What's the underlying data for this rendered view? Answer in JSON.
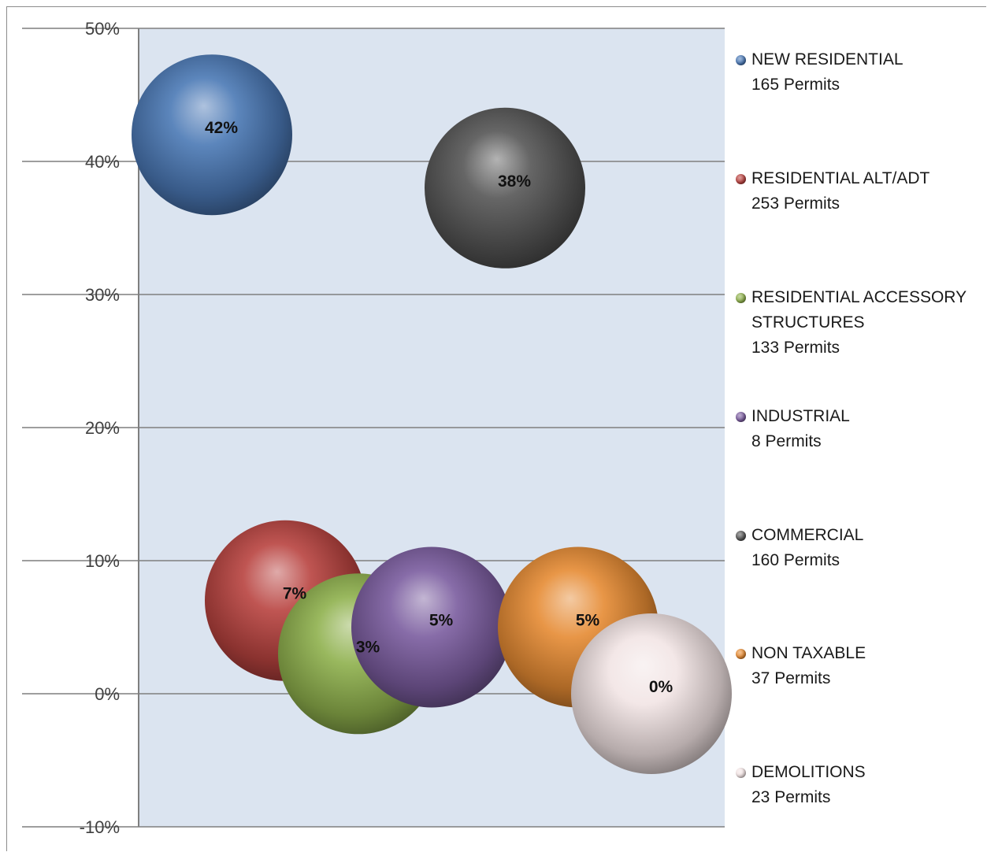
{
  "chart_data": {
    "type": "bubble",
    "title": "",
    "xlabel": "",
    "ylabel": "",
    "ylim": [
      -0.1,
      0.5
    ],
    "yticks": [
      "-10%",
      "0%",
      "10%",
      "20%",
      "30%",
      "40%",
      "50%"
    ],
    "ytick_values": [
      -0.1,
      0.0,
      0.1,
      0.2,
      0.3,
      0.4,
      0.5
    ],
    "grid": true,
    "legend_position": "right",
    "series": [
      {
        "name": "NEW RESIDENTIAL",
        "count_label": "165 Permits",
        "x": 0.1,
        "y": 0.42,
        "size": 165,
        "label": "42%",
        "color": "#4a78b5"
      },
      {
        "name": "RESIDENTIAL ALT/ADT",
        "count_label": "253 Permits",
        "x": 0.2,
        "y": 0.07,
        "size": 253,
        "label": "7%",
        "color": "#b8423f"
      },
      {
        "name": "RESIDENTIAL ACCESSORY STRUCTURES",
        "count_label": "133 Permits",
        "x": 0.3,
        "y": 0.03,
        "size": 133,
        "label": "3%",
        "color": "#8eb04c"
      },
      {
        "name": "INDUSTRIAL",
        "count_label": "8 Permits",
        "x": 0.4,
        "y": 0.05,
        "size": 8,
        "label": "5%",
        "color": "#7a5c9e"
      },
      {
        "name": "COMMERCIAL",
        "count_label": "160 Permits",
        "x": 0.5,
        "y": 0.38,
        "size": 160,
        "label": "38%",
        "color": "#555555"
      },
      {
        "name": "NON TAXABLE",
        "count_label": "37 Permits",
        "x": 0.6,
        "y": 0.05,
        "size": 37,
        "label": "5%",
        "color": "#e58a33"
      },
      {
        "name": "DEMOLITIONS",
        "count_label": "23 Permits",
        "x": 0.7,
        "y": 0.0,
        "size": 23,
        "label": "0%",
        "color": "#f2e4e4"
      }
    ]
  },
  "colors": {
    "plot_background": "#dbe4f0",
    "gridline": "#7f7f7f",
    "axis": "#7f7f7f"
  }
}
